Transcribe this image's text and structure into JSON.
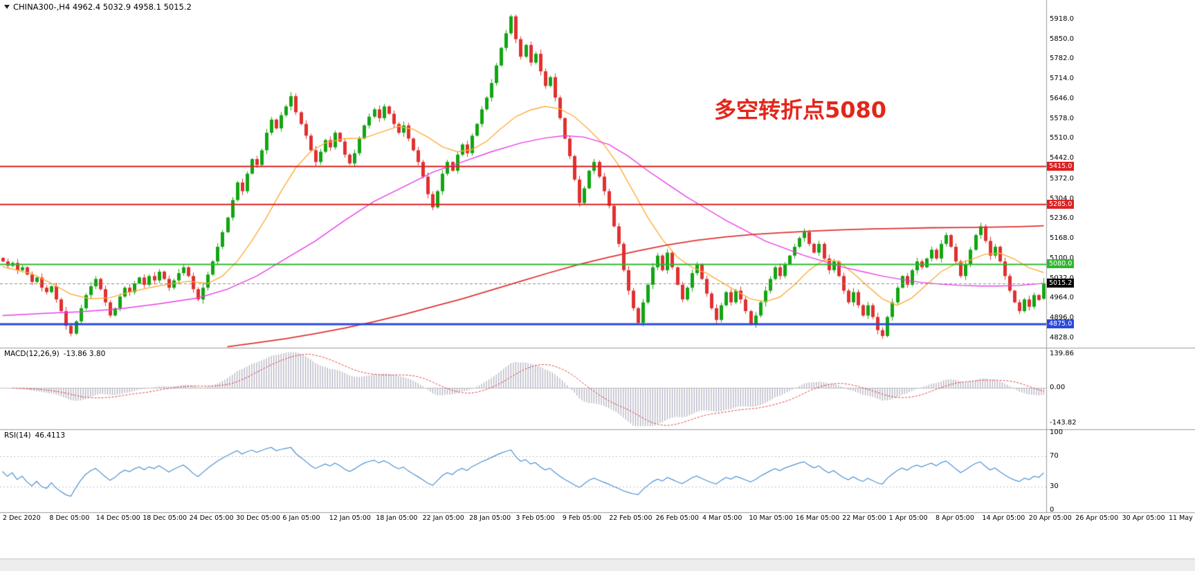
{
  "header": {
    "symbol_line": "CHINA300-,H4 4962.4 5032.9 4958.1 5015.2"
  },
  "annotation": {
    "text": "多空转折点5080",
    "color": "#e3261a"
  },
  "panels": {
    "macd": {
      "title": "MACD(12,26,9)",
      "values": "-13.86 3.80",
      "yticks": [
        "139.86",
        "0.00",
        "-143.82"
      ],
      "ytick_values": [
        139.86,
        0,
        -143.82
      ]
    },
    "rsi": {
      "title": "RSI(14)",
      "value": "46.4113",
      "yticks": [
        "100",
        "70",
        "30",
        "0"
      ],
      "ytick_values": [
        100,
        70,
        30,
        0
      ]
    }
  },
  "colors": {
    "up": "#13a513",
    "down": "#e03030",
    "histogram": "#aaaabc",
    "signal": "#e04040",
    "rsi_line": "#4a90d2",
    "separator": "#999999",
    "zero_line": "#c0c0c0",
    "level_line": "#c0c0c0",
    "current_line": "#888888",
    "current_tag_bg": "#000000",
    "axis_text": "#000000"
  },
  "chart_data": {
    "type": "candlestick",
    "symbol": "CHINA300-",
    "timeframe": "H4",
    "last_quote": {
      "open": 4962.4,
      "high": 5032.9,
      "low": 4958.1,
      "close": 5015.2
    },
    "price_axis": {
      "ylim": [
        4802,
        5965
      ],
      "tick_values": [
        5918,
        5850,
        5782,
        5714,
        5646,
        5578,
        5510,
        5442,
        5372,
        5304,
        5236,
        5168,
        5100,
        5032,
        4964,
        4896,
        4828
      ],
      "tick_labels": [
        "5918.0",
        "5850.0",
        "5782.0",
        "5714.0",
        "5646.0",
        "5578.0",
        "5510.0",
        "5442.0",
        "5372.0",
        "5304.0",
        "5236.0",
        "5168.0",
        "5100.0",
        "5032.0",
        "4964.0",
        "4896.0",
        "4828.0"
      ]
    },
    "hlines": [
      {
        "price": 5415.0,
        "label": "5415.0",
        "color": "#dd2222",
        "width": 2
      },
      {
        "price": 5285.0,
        "label": "5285.0",
        "color": "#dd2222",
        "width": 2
      },
      {
        "price": 5080.0,
        "label": "5080.0",
        "color": "#2eb82e",
        "width": 2
      },
      {
        "price": 4875.0,
        "label": "4875.0",
        "color": "#2b48d9",
        "width": 3
      }
    ],
    "current_price": {
      "value": 5015.2,
      "label": "5015.2"
    },
    "closes": [
      5090,
      5075,
      5085,
      5060,
      5070,
      5045,
      5020,
      5035,
      5000,
      4985,
      5005,
      4960,
      4920,
      4870,
      4843,
      4885,
      4930,
      4975,
      5005,
      5030,
      4995,
      4950,
      4905,
      4930,
      4970,
      5000,
      4985,
      5015,
      5035,
      5010,
      5040,
      5025,
      5055,
      5030,
      5000,
      5025,
      5050,
      5070,
      5040,
      4995,
      4960,
      5000,
      5045,
      5090,
      5140,
      5190,
      5240,
      5300,
      5360,
      5330,
      5390,
      5440,
      5420,
      5470,
      5530,
      5575,
      5545,
      5590,
      5620,
      5655,
      5600,
      5560,
      5520,
      5470,
      5430,
      5465,
      5505,
      5480,
      5530,
      5500,
      5455,
      5425,
      5460,
      5510,
      5555,
      5585,
      5610,
      5580,
      5620,
      5595,
      5560,
      5530,
      5555,
      5510,
      5470,
      5430,
      5380,
      5320,
      5275,
      5330,
      5390,
      5430,
      5400,
      5455,
      5490,
      5460,
      5520,
      5560,
      5610,
      5650,
      5700,
      5760,
      5820,
      5870,
      5928,
      5850,
      5790,
      5830,
      5770,
      5800,
      5740,
      5690,
      5720,
      5650,
      5580,
      5510,
      5450,
      5370,
      5290,
      5340,
      5400,
      5430,
      5380,
      5330,
      5280,
      5210,
      5150,
      5060,
      4990,
      4930,
      4880,
      4950,
      5010,
      5070,
      5110,
      5060,
      5120,
      5070,
      5010,
      4960,
      5000,
      5050,
      5080,
      5030,
      4980,
      4930,
      4890,
      4940,
      4985,
      4950,
      4990,
      4960,
      4920,
      4875,
      4905,
      4950,
      4990,
      5030,
      5070,
      5040,
      5080,
      5110,
      5140,
      5170,
      5190,
      5150,
      5120,
      5150,
      5100,
      5060,
      5090,
      5040,
      4990,
      4950,
      4985,
      4940,
      4905,
      4940,
      4900,
      4855,
      4835,
      4900,
      4950,
      5000,
      5040,
      5010,
      5060,
      5090,
      5070,
      5100,
      5130,
      5100,
      5150,
      5180,
      5140,
      5090,
      5040,
      5080,
      5130,
      5180,
      5210,
      5160,
      5110,
      5140,
      5090,
      5040,
      4990,
      4950,
      4920,
      4960,
      4935,
      4975,
      4958,
      5015.2
    ],
    "moving_averages": [
      {
        "name": "ma-fast-orange",
        "color": "#ffac3a",
        "width": 1.4,
        "points": [
          [
            0,
            5072
          ],
          [
            6,
            5048
          ],
          [
            10,
            5015
          ],
          [
            14,
            4978
          ],
          [
            18,
            4962
          ],
          [
            22,
            4966
          ],
          [
            26,
            4985
          ],
          [
            30,
            5000
          ],
          [
            34,
            5012
          ],
          [
            38,
            5022
          ],
          [
            42,
            5015
          ],
          [
            45,
            5040
          ],
          [
            48,
            5090
          ],
          [
            51,
            5160
          ],
          [
            54,
            5240
          ],
          [
            57,
            5330
          ],
          [
            60,
            5410
          ],
          [
            63,
            5465
          ],
          [
            66,
            5495
          ],
          [
            70,
            5510
          ],
          [
            74,
            5512
          ],
          [
            78,
            5535
          ],
          [
            81,
            5552
          ],
          [
            84,
            5542
          ],
          [
            87,
            5515
          ],
          [
            90,
            5482
          ],
          [
            93,
            5465
          ],
          [
            96,
            5472
          ],
          [
            99,
            5500
          ],
          [
            102,
            5545
          ],
          [
            105,
            5585
          ],
          [
            108,
            5608
          ],
          [
            111,
            5620
          ],
          [
            114,
            5612
          ],
          [
            117,
            5585
          ],
          [
            120,
            5540
          ],
          [
            123,
            5490
          ],
          [
            126,
            5420
          ],
          [
            129,
            5330
          ],
          [
            132,
            5240
          ],
          [
            135,
            5165
          ],
          [
            138,
            5105
          ],
          [
            141,
            5070
          ],
          [
            144,
            5050
          ],
          [
            147,
            5020
          ],
          [
            150,
            4990
          ],
          [
            153,
            4962
          ],
          [
            156,
            4952
          ],
          [
            159,
            4968
          ],
          [
            162,
            5010
          ],
          [
            165,
            5060
          ],
          [
            168,
            5095
          ],
          [
            171,
            5090
          ],
          [
            174,
            5050
          ],
          [
            177,
            5005
          ],
          [
            180,
            4962
          ],
          [
            183,
            4940
          ],
          [
            186,
            4965
          ],
          [
            189,
            5010
          ],
          [
            192,
            5055
          ],
          [
            195,
            5082
          ],
          [
            198,
            5095
          ],
          [
            201,
            5115
          ],
          [
            204,
            5118
          ],
          [
            207,
            5098
          ],
          [
            210,
            5068
          ],
          [
            213,
            5052
          ]
        ]
      },
      {
        "name": "ma-medium-magenta",
        "color": "#e83de8",
        "width": 1.4,
        "points": [
          [
            0,
            4905
          ],
          [
            8,
            4912
          ],
          [
            16,
            4918
          ],
          [
            24,
            4928
          ],
          [
            32,
            4945
          ],
          [
            40,
            4965
          ],
          [
            46,
            4995
          ],
          [
            52,
            5040
          ],
          [
            58,
            5100
          ],
          [
            64,
            5160
          ],
          [
            70,
            5230
          ],
          [
            76,
            5295
          ],
          [
            82,
            5345
          ],
          [
            88,
            5395
          ],
          [
            94,
            5430
          ],
          [
            100,
            5465
          ],
          [
            106,
            5495
          ],
          [
            111,
            5512
          ],
          [
            115,
            5520
          ],
          [
            119,
            5515
          ],
          [
            124,
            5490
          ],
          [
            128,
            5450
          ],
          [
            132,
            5400
          ],
          [
            136,
            5355
          ],
          [
            140,
            5310
          ],
          [
            144,
            5270
          ],
          [
            148,
            5230
          ],
          [
            152,
            5195
          ],
          [
            156,
            5160
          ],
          [
            160,
            5135
          ],
          [
            164,
            5110
          ],
          [
            168,
            5090
          ],
          [
            172,
            5070
          ],
          [
            176,
            5055
          ],
          [
            180,
            5040
          ],
          [
            184,
            5028
          ],
          [
            188,
            5018
          ],
          [
            192,
            5012
          ],
          [
            196,
            5008
          ],
          [
            200,
            5006
          ],
          [
            204,
            5006
          ],
          [
            208,
            5008
          ],
          [
            213,
            5015
          ]
        ]
      },
      {
        "name": "ma-slow-red",
        "color": "#e03030",
        "width": 1.8,
        "points": [
          [
            46,
            4798
          ],
          [
            52,
            4812
          ],
          [
            58,
            4826
          ],
          [
            64,
            4843
          ],
          [
            70,
            4862
          ],
          [
            76,
            4884
          ],
          [
            82,
            4908
          ],
          [
            88,
            4935
          ],
          [
            94,
            4962
          ],
          [
            100,
            4992
          ],
          [
            106,
            5022
          ],
          [
            112,
            5052
          ],
          [
            118,
            5080
          ],
          [
            124,
            5104
          ],
          [
            130,
            5126
          ],
          [
            136,
            5146
          ],
          [
            142,
            5162
          ],
          [
            148,
            5174
          ],
          [
            154,
            5183
          ],
          [
            160,
            5189
          ],
          [
            166,
            5194
          ],
          [
            172,
            5198
          ],
          [
            178,
            5201
          ],
          [
            184,
            5203
          ],
          [
            190,
            5205
          ],
          [
            196,
            5206
          ],
          [
            202,
            5207
          ],
          [
            208,
            5209
          ],
          [
            213,
            5212
          ]
        ]
      }
    ],
    "macd": {
      "fast": 12,
      "slow": 26,
      "signal": 9,
      "ylim": [
        -160,
        150
      ]
    },
    "rsi": {
      "period": 14,
      "ylim": [
        0,
        100
      ],
      "levels": [
        70,
        30
      ]
    },
    "xlabels": [
      "2 Dec 2020",
      "8 Dec 05:00",
      "14 Dec 05:00",
      "18 Dec 05:00",
      "24 Dec 05:00",
      "30 Dec 05:00",
      "6 Jan 05:00",
      "12 Jan 05:00",
      "18 Jan 05:00",
      "22 Jan 05:00",
      "28 Jan 05:00",
      "3 Feb 05:00",
      "9 Feb 05:00",
      "22 Feb 05:00",
      "26 Feb 05:00",
      "4 Mar 05:00",
      "10 Mar 05:00",
      "16 Mar 05:00",
      "22 Mar 05:00",
      "1 Apr 05:00",
      "8 Apr 05:00",
      "14 Apr 05:00",
      "20 Apr 05:00",
      "26 Apr 05:00",
      "30 Apr 05:00",
      "11 May 05:00"
    ]
  }
}
